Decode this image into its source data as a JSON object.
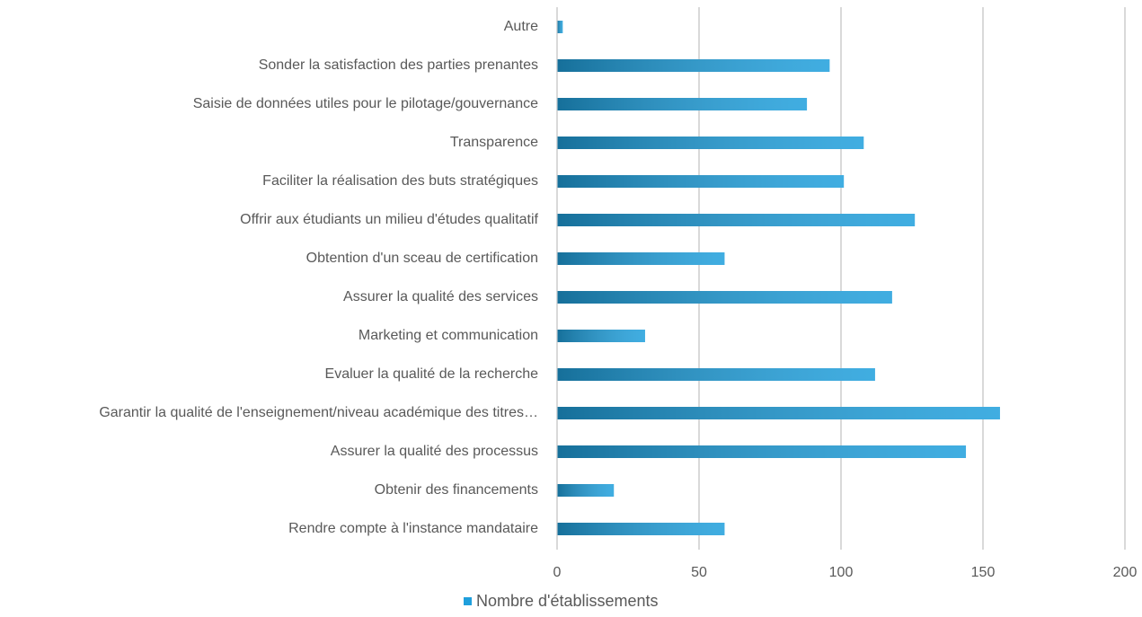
{
  "chart_data": {
    "type": "bar",
    "categories": [
      "Autre",
      "Sonder la satisfaction des parties prenantes",
      "Saisie de données utiles pour le pilotage/gouvernance",
      "Transparence",
      "Faciliter la réalisation des buts stratégiques",
      "Offrir aux étudiants un milieu d'études qualitatif",
      "Obtention d'un sceau de certification",
      "Assurer la qualité des services",
      "Marketing et communication",
      "Evaluer la qualité de la recherche",
      "Garantir la qualité de l'enseignement/niveau académique des titres…",
      "Assurer la qualité des processus",
      "Obtenir des financements",
      "Rendre compte à l'instance mandataire"
    ],
    "series": [
      {
        "name": "Nombre d'établissements",
        "color": "#1f9fdc",
        "values": [
          2,
          96,
          88,
          108,
          101,
          126,
          59,
          118,
          31,
          112,
          156,
          144,
          20,
          59
        ]
      }
    ],
    "xlim": [
      0,
      200
    ],
    "xticks": [
      0,
      50,
      100,
      150,
      200
    ],
    "grid": true,
    "legend": "bottom"
  }
}
